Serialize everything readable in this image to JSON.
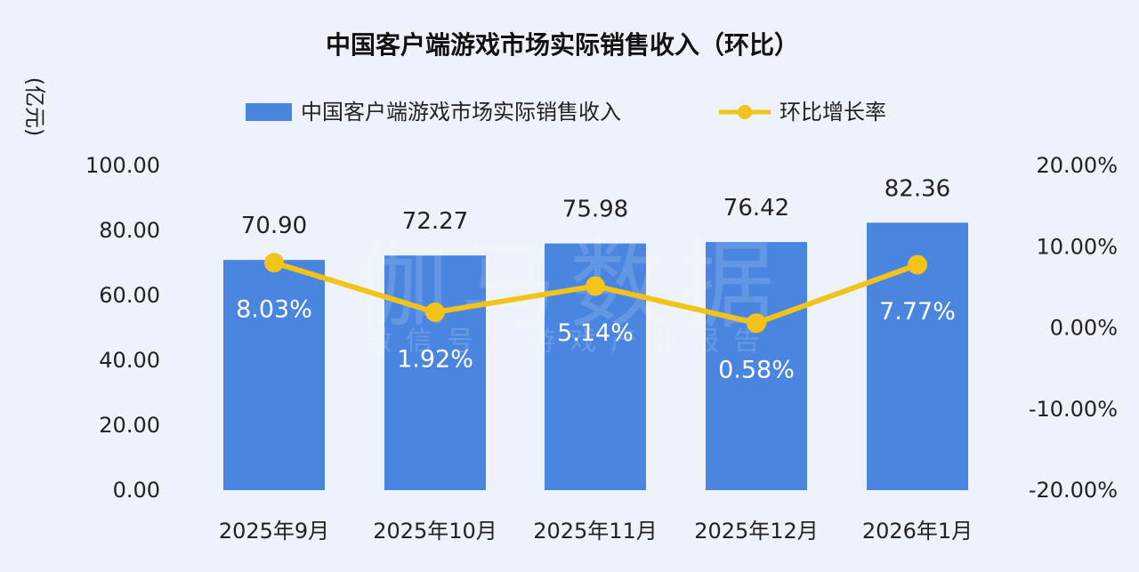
{
  "chart_data": {
    "type": "bar",
    "title": "中国客户端游戏市场实际销售收入（环比）",
    "unit_label": "(亿元)",
    "categories": [
      "2025年9月",
      "2025年10月",
      "2025年11月",
      "2025年12月",
      "2026年1月"
    ],
    "series": [
      {
        "name": "中国客户端游戏市场实际销售收入",
        "kind": "bar",
        "axis": "left",
        "values": [
          70.9,
          72.27,
          75.98,
          76.42,
          82.36
        ],
        "labels": [
          "70.90",
          "72.27",
          "75.98",
          "76.42",
          "82.36"
        ],
        "color": "#4a86df"
      },
      {
        "name": "环比增长率",
        "kind": "line",
        "axis": "right",
        "values": [
          8.03,
          1.92,
          5.14,
          0.58,
          7.77
        ],
        "labels": [
          "8.03%",
          "1.92%",
          "5.14%",
          "0.58%",
          "7.77%"
        ],
        "color": "#f2c318"
      }
    ],
    "y_left": {
      "min": 0,
      "max": 100,
      "ticks": [
        0,
        20,
        40,
        60,
        80,
        100
      ],
      "tick_labels": [
        "0.00",
        "20.00",
        "40.00",
        "60.00",
        "80.00",
        "100.00"
      ]
    },
    "y_right": {
      "min": -20,
      "max": 20,
      "ticks": [
        -20,
        -10,
        0,
        10,
        20
      ],
      "tick_labels": [
        "-20.00%",
        "-10.00%",
        "0.00%",
        "10.00%",
        "20.00%"
      ]
    },
    "legend_position": "top-center",
    "grid": false,
    "watermark_main": "伽马数据",
    "watermark_sub": "微信号：游戏产业报告",
    "colors": {
      "background": "#eef3fb",
      "bar": "#4a86df",
      "line": "#f2c318",
      "text": "#1a1a1a"
    }
  }
}
